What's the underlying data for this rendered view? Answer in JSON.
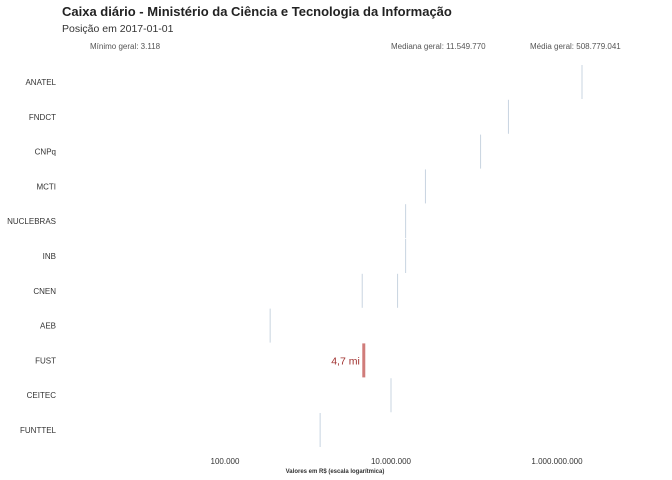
{
  "header": {
    "title": "Caixa diário - Ministério da Ciência e Tecnologia da Informação",
    "subtitle": "Posição em 2017-01-01"
  },
  "stats": {
    "min_label": "Mínimo geral:  3.118",
    "median_label": "Mediana geral:  11.549.770",
    "mean_label": "Média geral:  508.779.041"
  },
  "chart_data": {
    "type": "scatter",
    "title": "Caixa diário - Ministério da Ciência e Tecnologia da Informação",
    "subtitle": "Posição em 2017-01-01",
    "xlabel": "Valores em R$ (escala logarítmica)",
    "ylabel": "",
    "x_scale": "log",
    "xlim": [
      3118,
      3000000000
    ],
    "x_ticks": [
      {
        "value": 100000,
        "label": "100.000"
      },
      {
        "value": 10000000,
        "label": "10.000.000"
      },
      {
        "value": 1000000000,
        "label": "1.000.000.000"
      }
    ],
    "grid": false,
    "categories": [
      "ANATEL",
      "FNDCT",
      "CNPq",
      "MCTI",
      "NUCLEBRAS",
      "INB",
      "CNEN",
      "AEB",
      "FUST",
      "CEITEC",
      "FUNTTEL"
    ],
    "series": [
      {
        "values": [
          {
            "category": "ANATEL",
            "x": [
              2000000000
            ]
          },
          {
            "category": "FNDCT",
            "x": [
              260000000
            ]
          },
          {
            "category": "CNPq",
            "x": [
              120000000
            ]
          },
          {
            "category": "MCTI",
            "x": [
              26000000
            ]
          },
          {
            "category": "NUCLEBRAS",
            "x": [
              15000000
            ]
          },
          {
            "category": "INB",
            "x": [
              15000000
            ]
          },
          {
            "category": "CNEN",
            "x": [
              4500000,
              12000000
            ]
          },
          {
            "category": "AEB",
            "x": [
              350000
            ]
          },
          {
            "category": "CEITEC",
            "x": [
              10000000
            ]
          },
          {
            "category": "FUNTTEL",
            "x": [
              1400000
            ]
          }
        ]
      }
    ],
    "highlight": {
      "category": "FUST",
      "x": 4700000,
      "label": "4,7 mi",
      "color": "#c0504d"
    },
    "base_mark_color": "#c8d4e0"
  }
}
